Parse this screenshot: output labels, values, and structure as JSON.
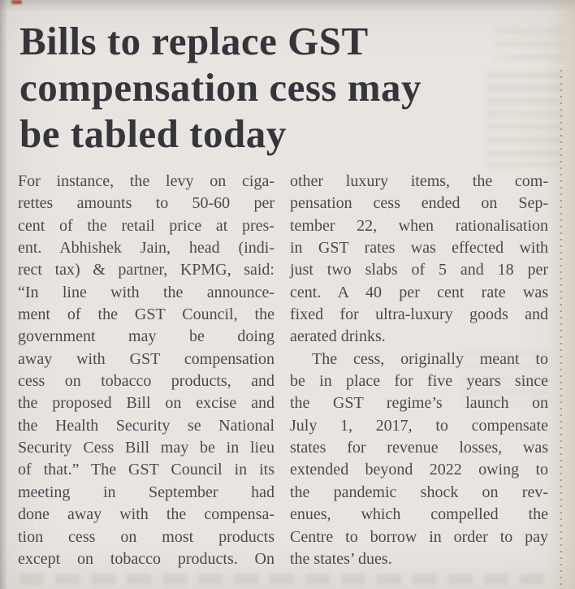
{
  "colors": {
    "paper": "#e8e5e1",
    "headline_ink": "#36353b",
    "body_ink": "#4b4a4f",
    "red_mark": "#b0392f",
    "rule_dot": "#8d8881",
    "ghost": "#8a7f63"
  },
  "article": {
    "headline_lines": [
      "Bills to replace GST",
      "compensation cess may",
      "be tabled today"
    ],
    "columns": [
      {
        "lines": [
          {
            "text": "For instance, the levy on ciga-",
            "justify": true,
            "indent": false
          },
          {
            "text": "rettes amounts to 50-60 per",
            "justify": true,
            "indent": false
          },
          {
            "text": "cent of the retail price at pres-",
            "justify": true,
            "indent": false
          },
          {
            "text": "ent. Abhishek Jain, head (indi-",
            "justify": true,
            "indent": false
          },
          {
            "text": "rect tax) & partner, KPMG, said:",
            "justify": true,
            "indent": false
          },
          {
            "text": "“In line with the announce-",
            "justify": true,
            "indent": false
          },
          {
            "text": "ment of the GST Council, the",
            "justify": true,
            "indent": false
          },
          {
            "text": "government may be doing",
            "justify": true,
            "indent": false
          },
          {
            "text": "away with GST compensation",
            "justify": true,
            "indent": false
          },
          {
            "text": "cess on tobacco products, and",
            "justify": true,
            "indent": false
          },
          {
            "text": "the proposed Bill on excise and",
            "justify": true,
            "indent": false
          },
          {
            "text": "the Health Security se National",
            "justify": true,
            "indent": false
          },
          {
            "text": "Security Cess Bill may be in lieu",
            "justify": true,
            "indent": false
          },
          {
            "text": "of that.” The GST Council in its",
            "justify": true,
            "indent": false
          },
          {
            "text": "meeting in September had",
            "justify": true,
            "indent": false
          },
          {
            "text": "done away with the compensa-",
            "justify": true,
            "indent": false
          },
          {
            "text": "tion cess on most products",
            "justify": true,
            "indent": false
          },
          {
            "text": "except on tobacco products. On",
            "justify": true,
            "indent": false
          }
        ]
      },
      {
        "lines": [
          {
            "text": "other luxury items, the com-",
            "justify": true,
            "indent": false
          },
          {
            "text": "pensation cess ended on Sep-",
            "justify": true,
            "indent": false
          },
          {
            "text": "tember 22, when rationalisation",
            "justify": true,
            "indent": false
          },
          {
            "text": "in GST rates was effected with",
            "justify": true,
            "indent": false
          },
          {
            "text": "just two slabs of 5 and 18 per",
            "justify": true,
            "indent": false
          },
          {
            "text": "cent. A 40 per cent rate was",
            "justify": true,
            "indent": false
          },
          {
            "text": "fixed for ultra-luxury goods and",
            "justify": true,
            "indent": false
          },
          {
            "text": "aerated drinks.",
            "justify": false,
            "indent": false
          },
          {
            "text": "The cess, originally meant to",
            "justify": true,
            "indent": true
          },
          {
            "text": "be in place for five years since",
            "justify": true,
            "indent": false
          },
          {
            "text": "the GST regime’s launch on",
            "justify": true,
            "indent": false
          },
          {
            "text": "July 1, 2017, to compensate",
            "justify": true,
            "indent": false
          },
          {
            "text": "states for revenue losses, was",
            "justify": true,
            "indent": false
          },
          {
            "text": "extended beyond 2022 owing to",
            "justify": true,
            "indent": false
          },
          {
            "text": "the pandemic shock on rev-",
            "justify": true,
            "indent": false
          },
          {
            "text": "enues, which compelled the",
            "justify": true,
            "indent": false
          },
          {
            "text": "Centre to borrow in order to pay",
            "justify": true,
            "indent": false
          },
          {
            "text": "the states’ dues.",
            "justify": false,
            "indent": false
          }
        ]
      }
    ]
  }
}
